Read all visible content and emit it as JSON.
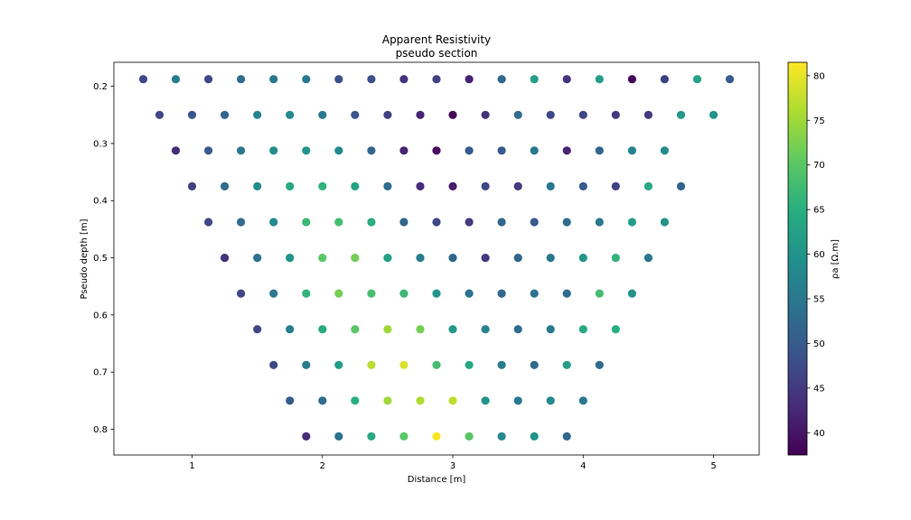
{
  "chart_data": {
    "type": "scatter",
    "title": "Apparent Resistivity",
    "subtitle": "pseudo section",
    "xlabel": "Distance [m]",
    "ylabel": "Pseudo depth [m]",
    "xlim": [
      0.4,
      5.35
    ],
    "ylim": [
      0.845,
      0.158
    ],
    "y_inverted": true,
    "grid": false,
    "xticks": [
      "1",
      "2",
      "3",
      "4",
      "5"
    ],
    "yticks": [
      "0.2",
      "0.3",
      "0.4",
      "0.5",
      "0.6",
      "0.7",
      "0.8"
    ],
    "colorbar": {
      "label": "ρa [Ω.m]",
      "min": 37.5,
      "max": 81.5,
      "colormap": "viridis",
      "ticks": [
        "40",
        "45",
        "50",
        "55",
        "60",
        "65",
        "70",
        "75",
        "80"
      ]
    },
    "rows": [
      {
        "depth": 0.1875,
        "x_start": 0.625,
        "values": [
          47,
          56,
          47,
          53,
          55,
          55,
          48,
          48,
          44,
          46,
          42,
          52,
          62,
          44,
          62,
          38,
          46,
          63,
          50
        ]
      },
      {
        "depth": 0.25,
        "x_start": 0.75,
        "values": [
          47,
          49,
          52,
          57,
          58,
          55,
          49,
          46,
          42,
          38,
          44,
          53,
          47,
          47,
          45,
          45,
          61,
          60
        ]
      },
      {
        "depth": 0.3125,
        "x_start": 0.875,
        "values": [
          43,
          50,
          55,
          59,
          60,
          58,
          52,
          42,
          39,
          50,
          50,
          55,
          42,
          52,
          57,
          59
        ]
      },
      {
        "depth": 0.375,
        "x_start": 1.0,
        "values": [
          46,
          53,
          59,
          64,
          66,
          63,
          53,
          43,
          41,
          47,
          45,
          55,
          50,
          46,
          64,
          52
        ]
      },
      {
        "depth": 0.4375,
        "x_start": 1.125,
        "values": [
          47,
          53,
          58,
          67,
          68,
          65,
          52,
          47,
          45,
          52,
          50,
          53,
          55,
          62,
          60
        ]
      },
      {
        "depth": 0.5,
        "x_start": 1.25,
        "values": [
          44,
          54,
          60,
          70,
          72,
          62,
          56,
          52,
          45,
          52,
          55,
          60,
          66,
          55
        ]
      },
      {
        "depth": 0.5625,
        "x_start": 1.375,
        "values": [
          47,
          55,
          66,
          72,
          68,
          67,
          60,
          54,
          52,
          54,
          53,
          68,
          60
        ]
      },
      {
        "depth": 0.625,
        "x_start": 1.5,
        "values": [
          47,
          56,
          64,
          70,
          75,
          72,
          61,
          57,
          53,
          55,
          64,
          65
        ]
      },
      {
        "depth": 0.6875,
        "x_start": 1.625,
        "values": [
          47,
          56,
          62,
          77,
          79,
          68,
          64,
          56,
          53,
          62,
          53
        ]
      },
      {
        "depth": 0.75,
        "x_start": 1.75,
        "values": [
          50,
          53,
          65,
          75,
          76,
          77,
          60,
          55,
          58,
          55
        ]
      },
      {
        "depth": 0.8125,
        "x_start": 1.875,
        "values": [
          43,
          54,
          64,
          70,
          81,
          70,
          58,
          60,
          52
        ]
      }
    ]
  }
}
